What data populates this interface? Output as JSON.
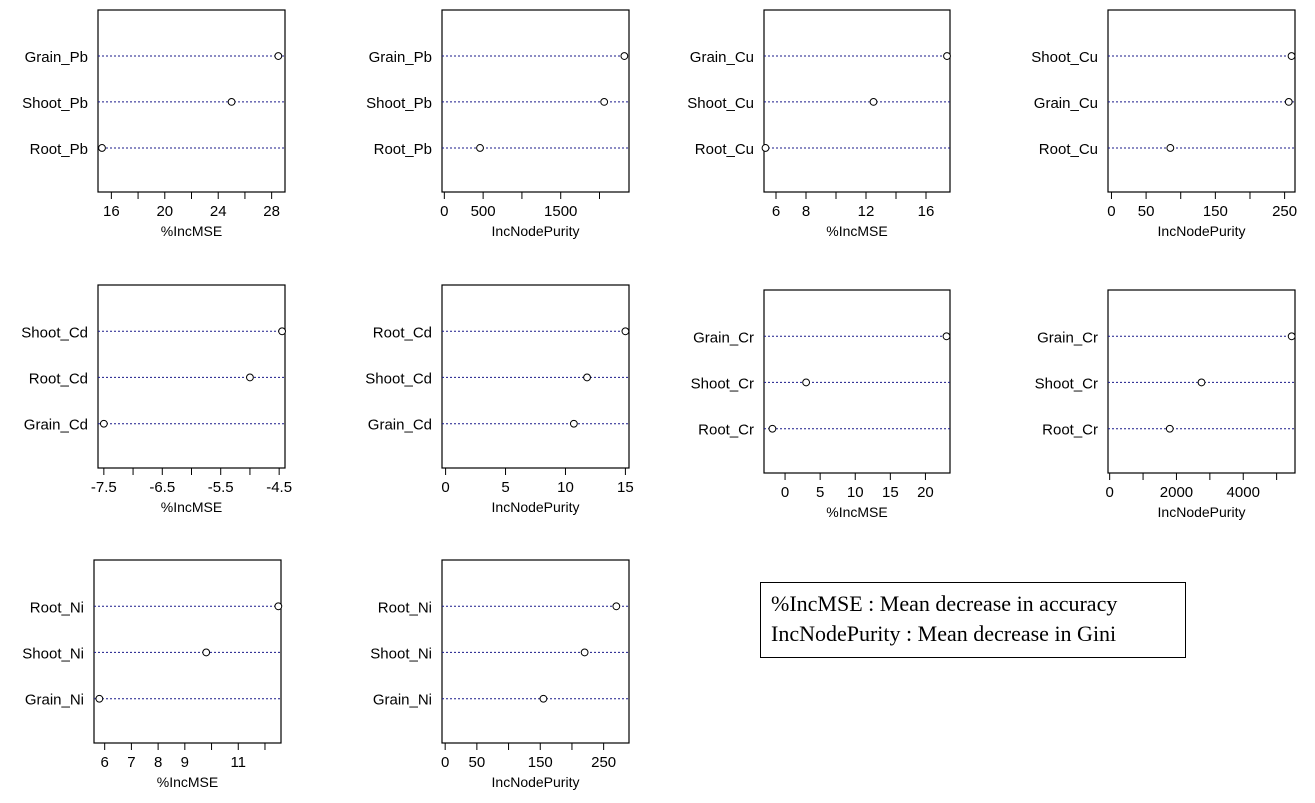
{
  "chart_data": [
    {
      "type": "scatter",
      "xlabel": "%IncMSE",
      "xlim": [
        15,
        29
      ],
      "ticks": [
        16,
        20,
        24,
        28
      ],
      "minor_ticks": [
        18,
        22,
        26
      ],
      "series": [
        {
          "label": "Grain_Pb",
          "value": 28.5
        },
        {
          "label": "Shoot_Pb",
          "value": 25.0
        },
        {
          "label": "Root_Pb",
          "value": 15.3
        }
      ]
    },
    {
      "type": "scatter",
      "xlabel": "IncNodePurity",
      "xlim": [
        -30,
        2380
      ],
      "ticks": [
        0,
        500,
        1500
      ],
      "minor_ticks": [
        1000,
        2000
      ],
      "series": [
        {
          "label": "Grain_Pb",
          "value": 2320
        },
        {
          "label": "Shoot_Pb",
          "value": 2060
        },
        {
          "label": "Root_Pb",
          "value": 460
        }
      ]
    },
    {
      "type": "scatter",
      "xlabel": "%IncMSE",
      "xlim": [
        5.2,
        17.6
      ],
      "ticks": [
        6,
        8,
        12,
        16
      ],
      "minor_ticks": [
        10,
        14
      ],
      "series": [
        {
          "label": "Grain_Cu",
          "value": 17.4
        },
        {
          "label": "Shoot_Cu",
          "value": 12.5
        },
        {
          "label": "Root_Cu",
          "value": 5.3
        }
      ]
    },
    {
      "type": "scatter",
      "xlabel": "IncNodePurity",
      "xlim": [
        -5,
        265
      ],
      "ticks": [
        0,
        50,
        150,
        250
      ],
      "minor_ticks": [
        100,
        200
      ],
      "series": [
        {
          "label": "Shoot_Cu",
          "value": 260
        },
        {
          "label": "Grain_Cu",
          "value": 256
        },
        {
          "label": "Root_Cu",
          "value": 85
        }
      ]
    },
    {
      "type": "scatter",
      "xlabel": "%IncMSE",
      "xlim": [
        -7.6,
        -4.4
      ],
      "ticks": [
        -7.5,
        -6.5,
        -5.5,
        -4.5
      ],
      "minor_ticks": [
        -7.0,
        -6.0,
        -5.0
      ],
      "series": [
        {
          "label": "Shoot_Cd",
          "value": -4.45
        },
        {
          "label": "Root_Cd",
          "value": -5.0
        },
        {
          "label": "Grain_Cd",
          "value": -7.5
        }
      ]
    },
    {
      "type": "scatter",
      "xlabel": "IncNodePurity",
      "xlim": [
        -0.3,
        15.3
      ],
      "ticks": [
        0,
        5,
        10,
        15
      ],
      "minor_ticks": [],
      "series": [
        {
          "label": "Root_Cd",
          "value": 15.0
        },
        {
          "label": "Shoot_Cd",
          "value": 11.8
        },
        {
          "label": "Grain_Cd",
          "value": 10.7
        }
      ]
    },
    {
      "type": "scatter",
      "xlabel": "%IncMSE",
      "xlim": [
        -3,
        23.5
      ],
      "ticks": [
        0,
        5,
        10,
        15,
        20
      ],
      "minor_ticks": [],
      "series": [
        {
          "label": "Grain_Cr",
          "value": 23.0
        },
        {
          "label": "Shoot_Cr",
          "value": 3.0
        },
        {
          "label": "Root_Cr",
          "value": -1.8
        }
      ]
    },
    {
      "type": "scatter",
      "xlabel": "IncNodePurity",
      "xlim": [
        -50,
        5550
      ],
      "ticks": [
        0,
        2000,
        4000
      ],
      "minor_ticks": [
        1000,
        3000,
        5000
      ],
      "series": [
        {
          "label": "Grain_Cr",
          "value": 5450
        },
        {
          "label": "Shoot_Cr",
          "value": 2750
        },
        {
          "label": "Root_Cr",
          "value": 1800
        }
      ]
    },
    {
      "type": "scatter",
      "xlabel": "%IncMSE",
      "xlim": [
        5.6,
        12.6
      ],
      "ticks": [
        6,
        7,
        8,
        9,
        11
      ],
      "minor_ticks": [
        10,
        12
      ],
      "series": [
        {
          "label": "Root_Ni",
          "value": 12.5
        },
        {
          "label": "Shoot_Ni",
          "value": 9.8
        },
        {
          "label": "Grain_Ni",
          "value": 5.8
        }
      ]
    },
    {
      "type": "scatter",
      "xlabel": "IncNodePurity",
      "xlim": [
        -5,
        290
      ],
      "ticks": [
        0,
        50,
        150,
        250
      ],
      "minor_ticks": [
        100,
        200
      ],
      "series": [
        {
          "label": "Root_Ni",
          "value": 270
        },
        {
          "label": "Shoot_Ni",
          "value": 220
        },
        {
          "label": "Grain_Ni",
          "value": 155
        }
      ]
    }
  ],
  "legend": {
    "line1": "%IncMSE : Mean decrease in accuracy",
    "line2": "IncNodePurity : Mean decrease in Gini"
  }
}
